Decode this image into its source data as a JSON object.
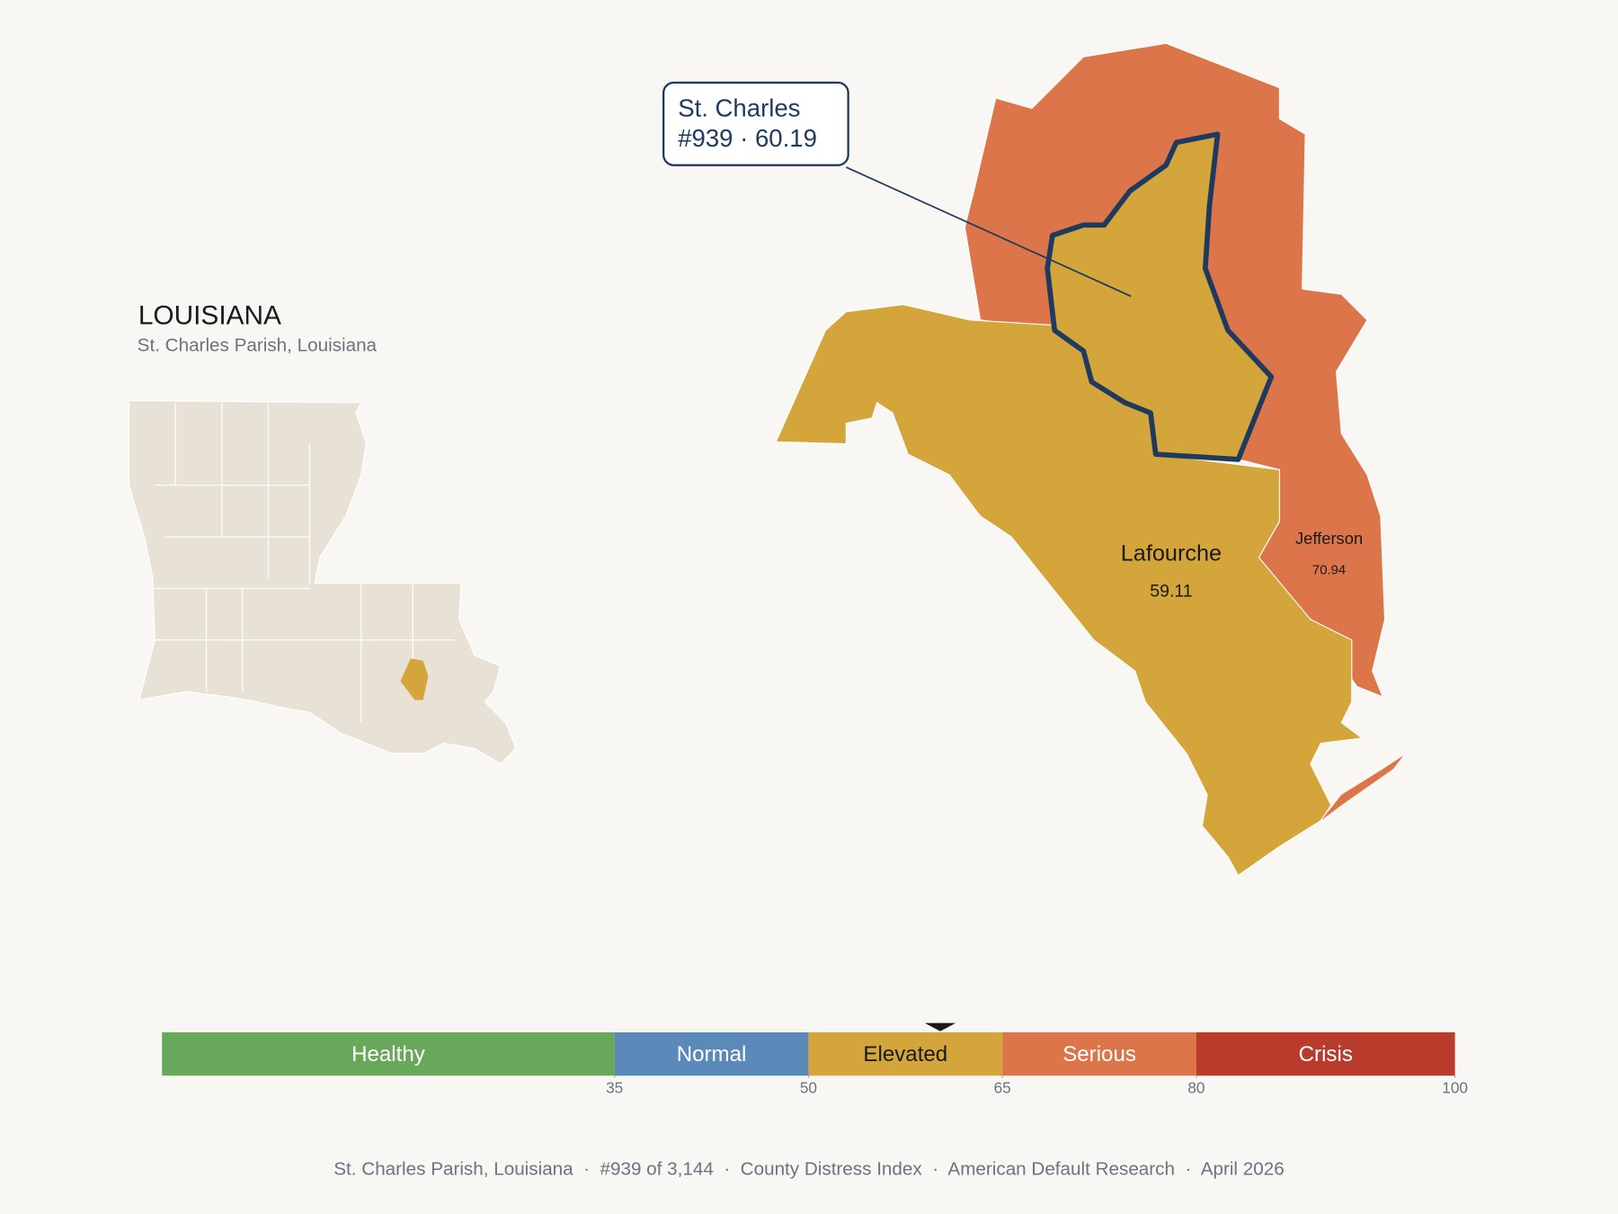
{
  "header": {
    "title": "LOUISIANA",
    "subtitle": "St. Charles Parish, Louisiana"
  },
  "map": {
    "focus": {
      "name": "St. Charles",
      "label": "#939 · 60.19"
    },
    "neighbors": [
      {
        "name": "Lafourche",
        "score": 59.11
      },
      {
        "name": "Jefferson",
        "score": 70.94
      }
    ]
  },
  "scale": {
    "range": [
      0,
      100
    ],
    "ticks": [
      35,
      50,
      65,
      80,
      100
    ],
    "marker": 60.19,
    "bands": [
      {
        "name": "Healthy",
        "color": "#67a85a",
        "text_color": "#ffffff"
      },
      {
        "name": "Normal",
        "color": "#5b8aba",
        "text_color": "#ffffff"
      },
      {
        "name": "Elevated",
        "color": "#d4a53a",
        "text_color": "#1a1a1a"
      },
      {
        "name": "Serious",
        "color": "#dc7549",
        "text_color": "#ffffff"
      },
      {
        "name": "Crisis",
        "color": "#b83b2c",
        "text_color": "#ffffff"
      }
    ]
  },
  "footer": "St. Charles Parish, Louisiana  ·  #939 of 3,144  ·  County Distress Index  ·  American Default Research  ·  April 2026"
}
